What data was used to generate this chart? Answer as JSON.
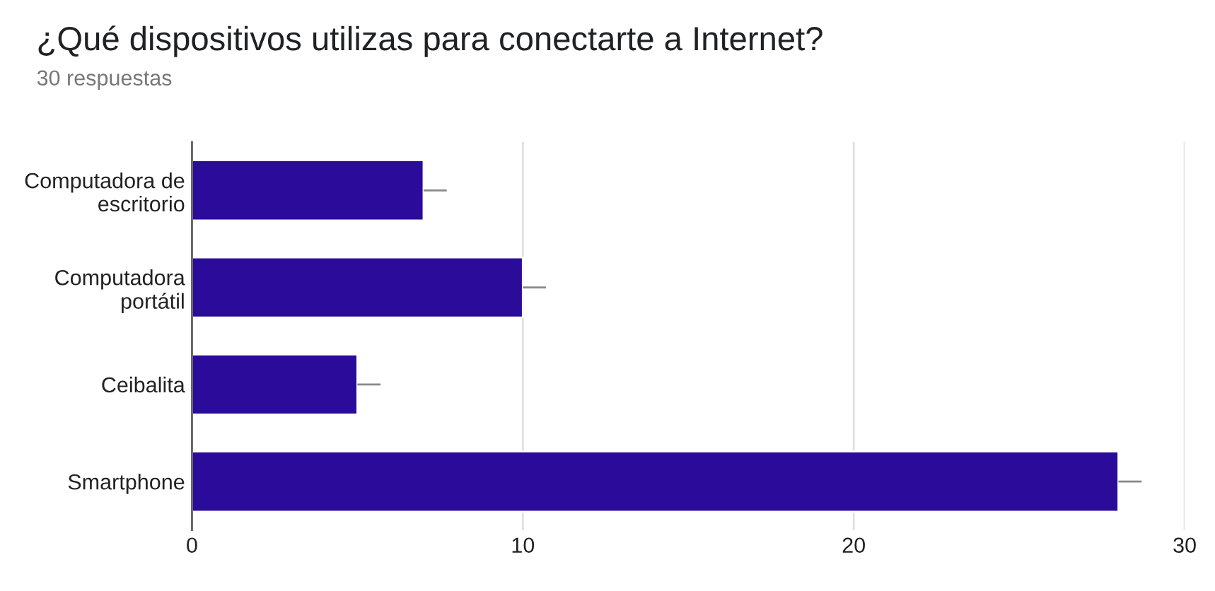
{
  "chart_data": {
    "type": "bar",
    "orientation": "horizontal",
    "title": "¿Qué dispositivos utilizas para conectarte a Internet?",
    "subtitle": "30 respuestas",
    "categories": [
      "Computadora de\nescritorio",
      "Computadora\nportátil",
      "Ceibalita",
      "Smartphone"
    ],
    "values": [
      7,
      10,
      5,
      28
    ],
    "errors": [
      [
        7,
        7.7
      ],
      [
        10,
        10.7
      ],
      [
        5,
        5.7
      ],
      [
        28,
        28.7
      ]
    ],
    "color": "#2a0b9a",
    "xlim": [
      0,
      30
    ],
    "xticks": [
      0,
      10,
      20,
      30
    ],
    "grid": "x"
  }
}
